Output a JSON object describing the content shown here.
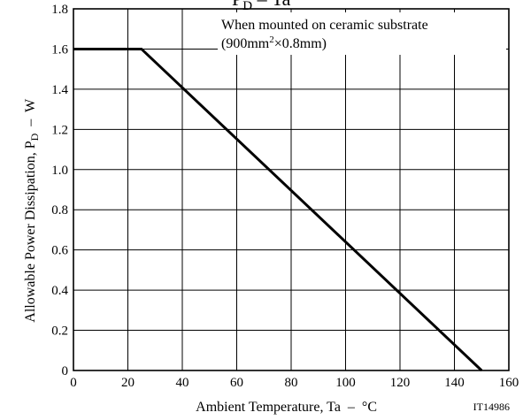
{
  "chart_data": {
    "type": "line",
    "title": "PD – Ta",
    "title_main": "P",
    "title_sub": "D",
    "title_rest": " – Ta",
    "xlabel": "Ambient Temperature, Ta  –  °C",
    "ylabel_main": "Allowable Power Dissipation, P",
    "ylabel_sub": "D",
    "ylabel_unit": "  –  W",
    "xlim": [
      0,
      160
    ],
    "ylim": [
      0,
      1.8
    ],
    "x_ticks": [
      "0",
      "20",
      "40",
      "60",
      "80",
      "100",
      "120",
      "140",
      "160"
    ],
    "y_ticks": [
      "0",
      "0.2",
      "0.4",
      "0.6",
      "0.8",
      "1.0",
      "1.2",
      "1.4",
      "1.6",
      "1.8"
    ],
    "grid": true,
    "series": [
      {
        "x": [
          0,
          25,
          150
        ],
        "y": [
          1.6,
          1.6,
          0
        ]
      }
    ],
    "annotation": {
      "line1": "When mounted on ceramic substrate",
      "line2_a": "(900mm",
      "line2_sup": "2",
      "line2_b": "×0.8mm)"
    },
    "figure_code": "IT14986"
  }
}
